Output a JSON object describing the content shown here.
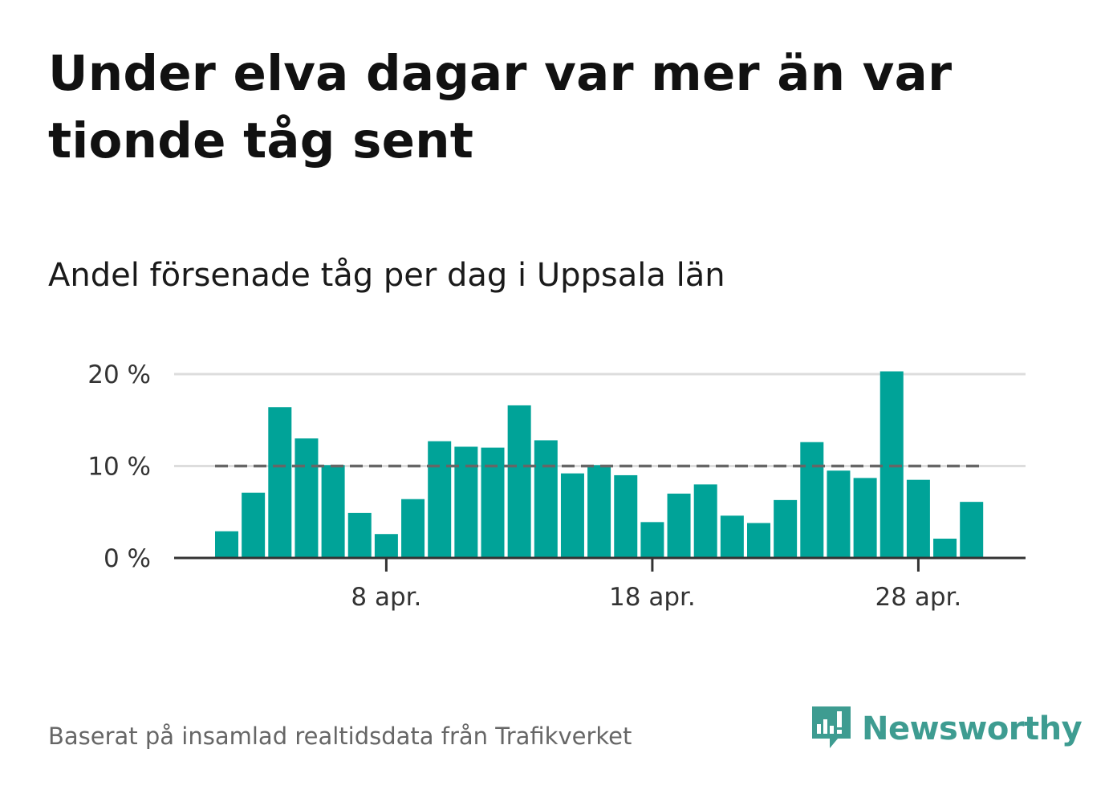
{
  "title": "Under elva dagar var mer än var tionde tåg sent",
  "subtitle": "Andel försenade tåg per dag i Uppsala län",
  "source": "Baserat på insamlad realtidsdata från Trafikverket",
  "brand": {
    "name": "Newsworthy",
    "icon": "newsworthy-logo-icon",
    "color": "#3e9c91"
  },
  "chart_data": {
    "type": "bar",
    "title": "Andel försenade tåg per dag i Uppsala län",
    "xlabel": "",
    "ylabel": "",
    "x": [
      "2 apr.",
      "3 apr.",
      "4 apr.",
      "5 apr.",
      "6 apr.",
      "7 apr.",
      "8 apr.",
      "9 apr.",
      "10 apr.",
      "11 apr.",
      "12 apr.",
      "13 apr.",
      "14 apr.",
      "15 apr.",
      "16 apr.",
      "17 apr.",
      "18 apr.",
      "19 apr.",
      "20 apr.",
      "21 apr.",
      "22 apr.",
      "23 apr.",
      "24 apr.",
      "25 apr.",
      "26 apr.",
      "27 apr.",
      "28 apr.",
      "29 apr.",
      "30 apr."
    ],
    "values": [
      2.9,
      7.1,
      16.4,
      13.0,
      10.1,
      4.9,
      2.6,
      6.4,
      12.7,
      12.1,
      12.0,
      16.6,
      12.8,
      9.2,
      10.1,
      9.0,
      3.9,
      7.0,
      8.0,
      4.6,
      3.8,
      6.3,
      12.6,
      9.5,
      8.7,
      20.3,
      8.5,
      2.1,
      6.1
    ],
    "reference_line": 10,
    "ylim": [
      0,
      20
    ],
    "yticks": [
      0,
      10,
      20
    ],
    "ytick_labels": [
      "0 %",
      "10 %",
      "20 %"
    ],
    "xtick_labels": [
      "8 apr.",
      "18 apr.",
      "28 apr."
    ],
    "grid": true,
    "bar_color": "#00a398",
    "reference_color": "#666666"
  }
}
